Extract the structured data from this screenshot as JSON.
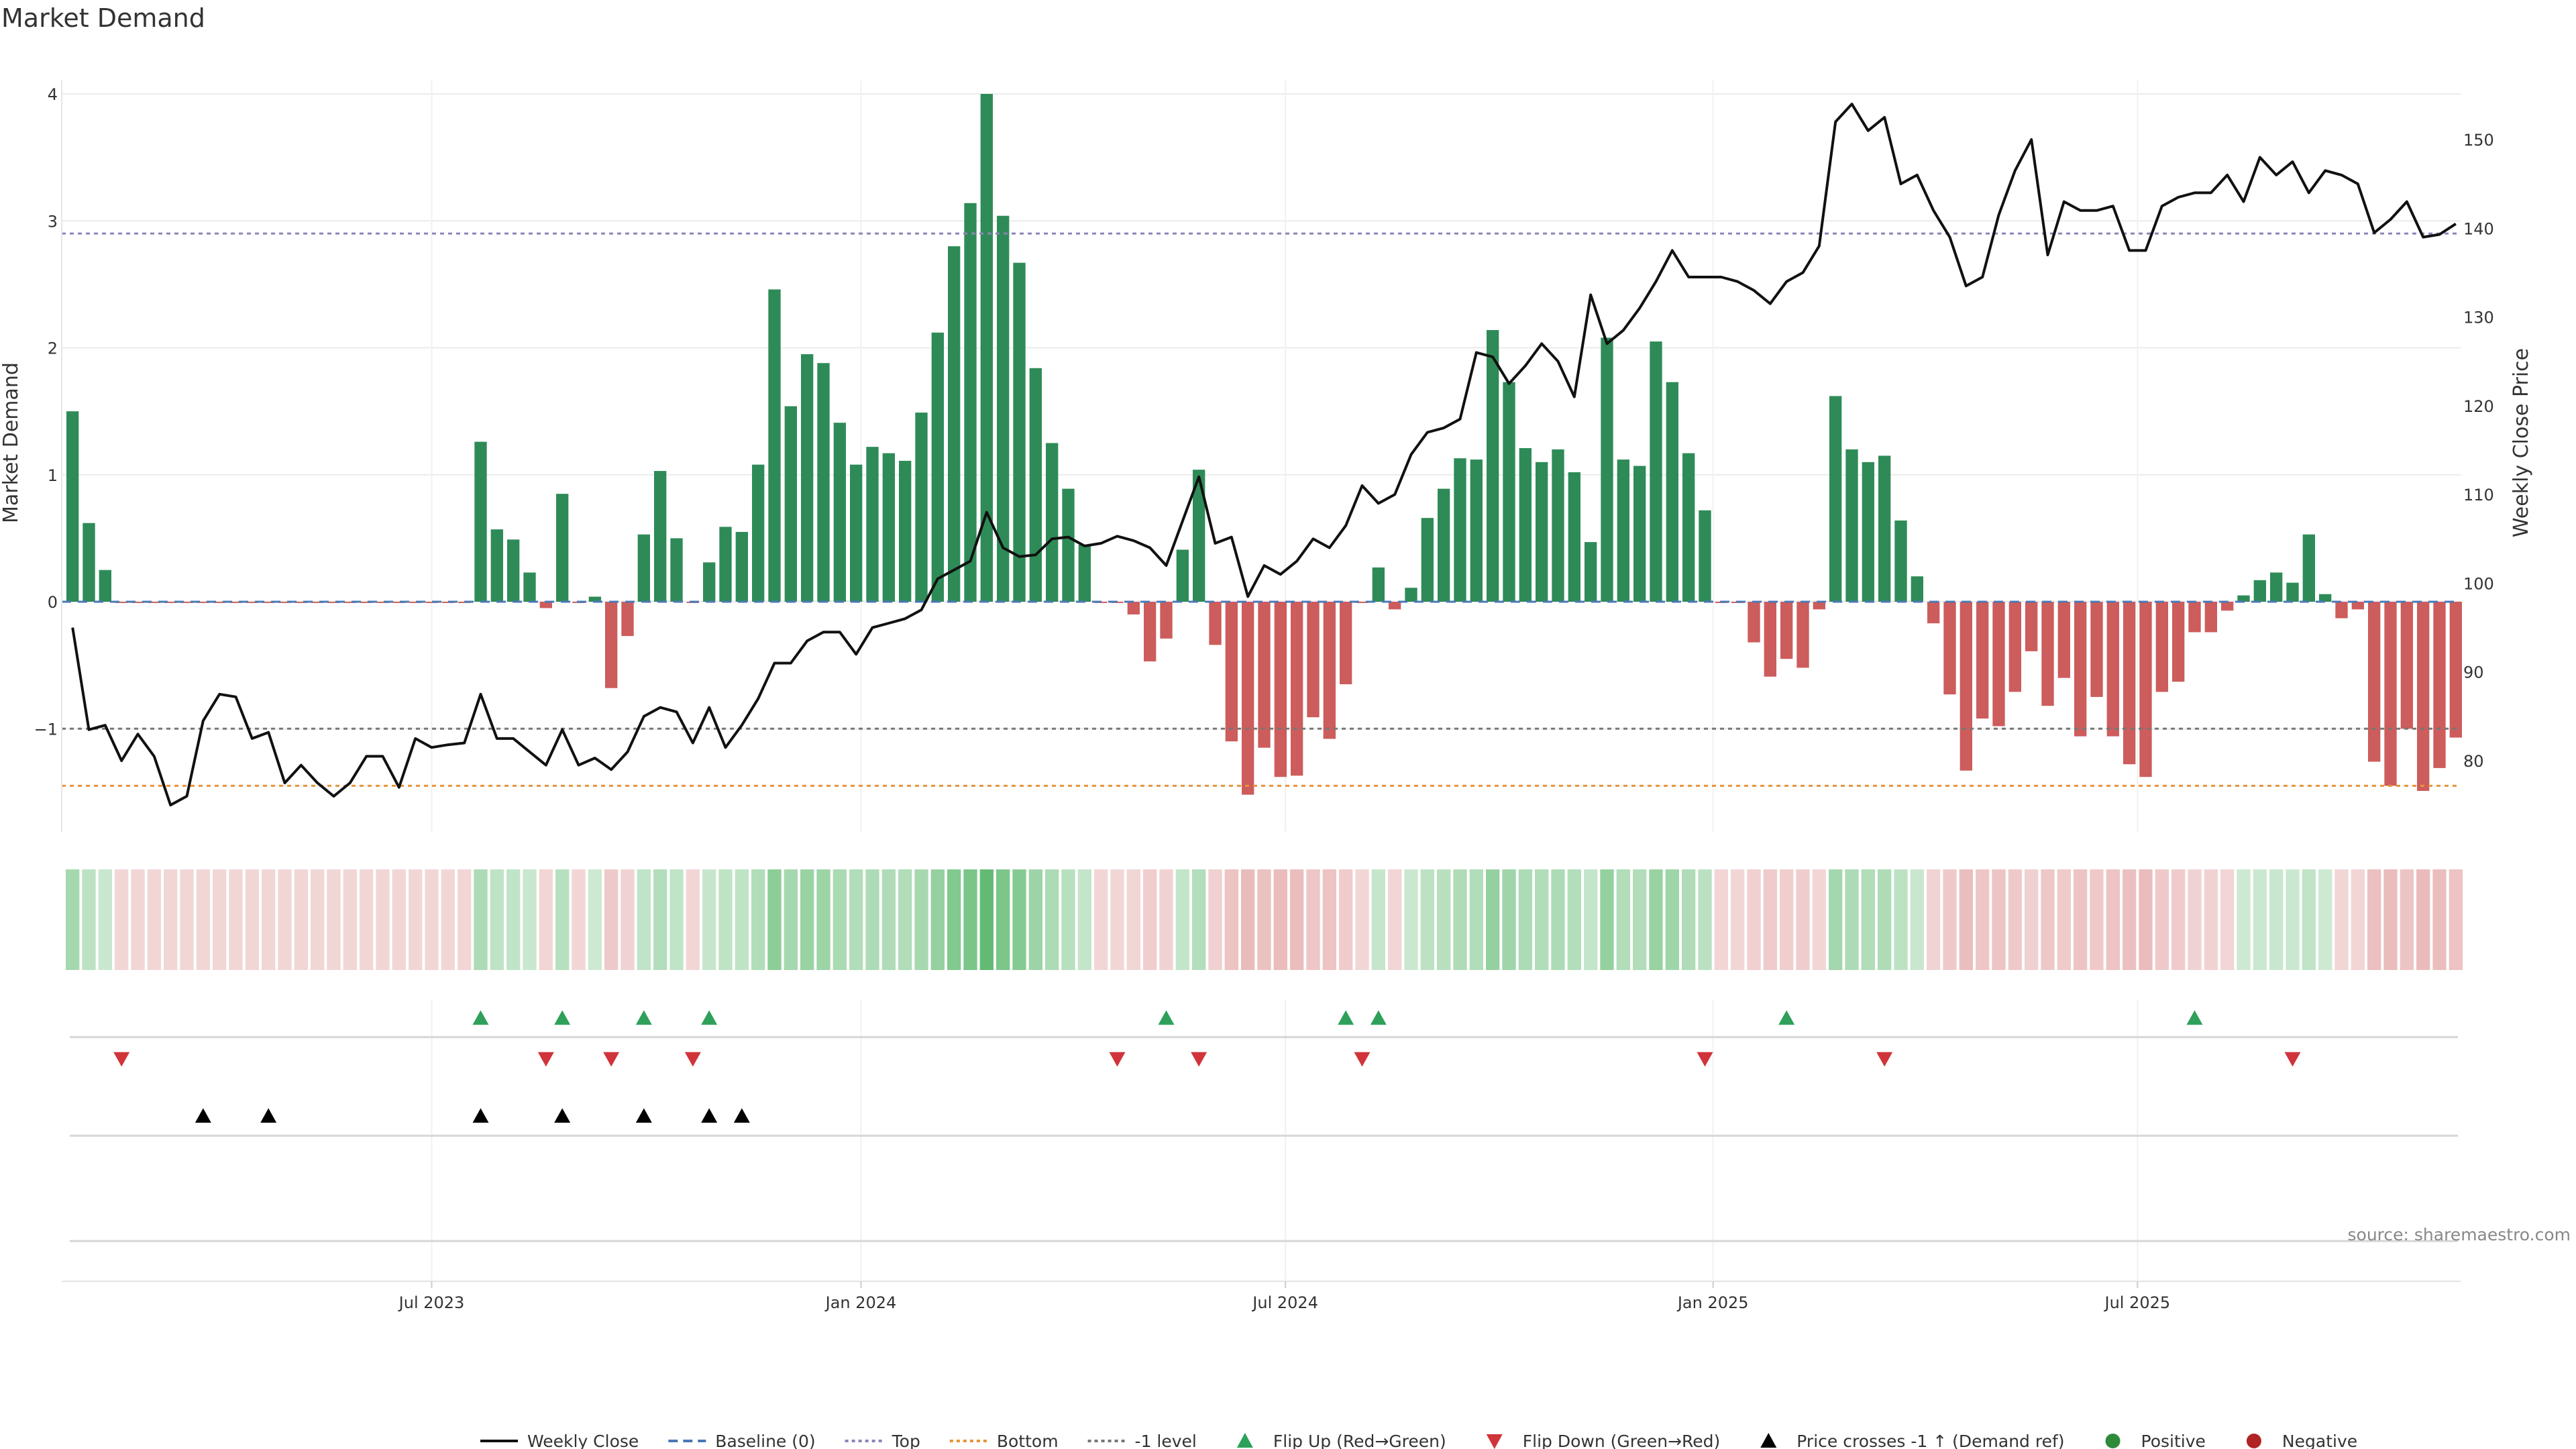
{
  "chart_data": {
    "type": "bar",
    "title": "Market Demand",
    "ylabel": "Market Demand",
    "y2label": "Weekly Close Price",
    "ylim": [
      -1.85,
      4.1
    ],
    "y2lim": [
      73.5,
      157.5
    ],
    "yticks": [
      4,
      3,
      2,
      1,
      0,
      -1
    ],
    "y2ticks": [
      150,
      140,
      130,
      120,
      110,
      100,
      90,
      80
    ],
    "xticks": [
      {
        "label": "Jul 2023",
        "index": 22
      },
      {
        "label": "Jan 2024",
        "index": 48.3
      },
      {
        "label": "Jul 2024",
        "index": 74.3
      },
      {
        "label": "Jan 2025",
        "index": 100.5
      },
      {
        "label": "Jul 2025",
        "index": 126.5
      }
    ],
    "reference_lines": {
      "top": 2.9,
      "bottom": -1.45,
      "minus_one": -1,
      "baseline": 0
    },
    "demand": [
      1.5,
      0.62,
      0.25,
      -0.01,
      -0.01,
      -0.01,
      -0.01,
      -0.01,
      -0.01,
      -0.01,
      -0.01,
      -0.01,
      -0.01,
      -0.01,
      -0.01,
      -0.01,
      -0.01,
      -0.01,
      -0.01,
      -0.01,
      -0.01,
      -0.01,
      -0.01,
      -0.01,
      -0.01,
      1.26,
      0.57,
      0.49,
      0.23,
      -0.05,
      0.85,
      -0.01,
      0.04,
      -0.68,
      -0.27,
      0.53,
      1.03,
      0.5,
      -0.01,
      0.31,
      0.59,
      0.55,
      1.08,
      2.46,
      1.54,
      1.95,
      1.88,
      1.41,
      1.08,
      1.22,
      1.17,
      1.11,
      1.49,
      2.12,
      2.8,
      3.14,
      4.0,
      3.04,
      2.67,
      1.84,
      1.25,
      0.89,
      0.45,
      -0.01,
      -0.01,
      -0.1,
      -0.47,
      -0.29,
      0.41,
      1.04,
      -0.34,
      -1.1,
      -1.52,
      -1.15,
      -1.38,
      -1.37,
      -0.91,
      -1.08,
      -0.65,
      -0.01,
      0.27,
      -0.06,
      0.11,
      0.66,
      0.89,
      1.13,
      1.12,
      2.14,
      1.73,
      1.21,
      1.1,
      1.2,
      1.02,
      0.47,
      2.08,
      1.12,
      1.07,
      2.05,
      1.73,
      1.17,
      0.72,
      -0.01,
      -0.01,
      -0.32,
      -0.59,
      -0.45,
      -0.52,
      -0.06,
      1.62,
      1.2,
      1.1,
      1.15,
      0.64,
      0.2,
      -0.17,
      -0.73,
      -1.33,
      -0.92,
      -0.98,
      -0.71,
      -0.39,
      -0.82,
      -0.6,
      -1.06,
      -0.75,
      -1.06,
      -1.28,
      -1.38,
      -0.71,
      -0.63,
      -0.24,
      -0.24,
      -0.07,
      0.05,
      0.17,
      0.23,
      0.15,
      0.53,
      0.06,
      -0.13,
      -0.06,
      -1.26,
      -1.45,
      -1.0,
      -1.49,
      -1.31,
      -1.07
    ],
    "weekly_close": [
      95.0,
      83.5,
      84.0,
      80.0,
      83.0,
      80.5,
      75.0,
      76.0,
      84.5,
      87.5,
      87.2,
      82.5,
      83.2,
      77.5,
      79.5,
      77.5,
      76.0,
      77.5,
      80.5,
      80.5,
      77.0,
      82.5,
      81.5,
      81.8,
      82.0,
      87.5,
      82.5,
      82.5,
      81.0,
      79.5,
      83.5,
      79.5,
      80.3,
      79.0,
      81.0,
      85.0,
      86.0,
      85.5,
      82.0,
      86.0,
      81.5,
      84.0,
      87.0,
      91.0,
      91.0,
      93.5,
      94.5,
      94.5,
      92.0,
      95.0,
      95.5,
      96.0,
      97.0,
      100.5,
      101.5,
      102.5,
      108.0,
      104.0,
      103.0,
      103.2,
      105.0,
      105.2,
      104.2,
      104.5,
      105.3,
      104.8,
      104.0,
      102.0,
      107.0,
      112.0,
      104.5,
      105.2,
      98.5,
      102.0,
      101.0,
      102.5,
      105.0,
      104.0,
      106.5,
      111.0,
      109.0,
      110.0,
      114.5,
      117.0,
      117.5,
      118.5,
      126.0,
      125.5,
      122.5,
      124.5,
      127.0,
      125.0,
      121.0,
      132.5,
      127.0,
      128.5,
      131.0,
      134.0,
      137.5,
      134.5,
      134.5,
      134.5,
      134.0,
      133.0,
      131.5,
      134.0,
      135.0,
      138.0,
      152.0,
      154.0,
      151.0,
      152.5,
      145.0,
      146.0,
      142.0,
      139.0,
      133.5,
      134.5,
      141.5,
      146.5,
      150.0,
      137.0,
      143.0,
      142.0,
      142.0,
      142.5,
      137.5,
      137.5,
      142.5,
      143.5,
      144.0,
      144.0,
      146.0,
      143.0,
      148.0,
      146.0,
      147.5,
      144.0,
      146.5,
      146.0,
      145.0,
      139.5,
      141.0,
      143.0,
      139.0,
      139.3,
      140.5
    ]
  },
  "events": {
    "flip_up": [
      25,
      30,
      35,
      39,
      67,
      78,
      80,
      105,
      130
    ],
    "flip_down": [
      3,
      29,
      33,
      38,
      64,
      69,
      79,
      100,
      111,
      136
    ],
    "price_cross": [
      8,
      12,
      25,
      30,
      35,
      39,
      41
    ]
  },
  "legend": {
    "items": [
      {
        "label": "Weekly Close",
        "kind": "line",
        "color": "#111111"
      },
      {
        "label": "Baseline (0)",
        "kind": "dash",
        "color": "#4a78b6"
      },
      {
        "label": "Top",
        "kind": "dot",
        "color": "#8c84b8"
      },
      {
        "label": "Bottom",
        "kind": "dot",
        "color": "#e6943a"
      },
      {
        "label": "-1 level",
        "kind": "dot",
        "color": "#777777"
      },
      {
        "label": "Flip Up (Red→Green)",
        "kind": "tri-up",
        "color": "#2ea05a"
      },
      {
        "label": "Flip Down (Green→Red)",
        "kind": "tri-down",
        "color": "#d0343a"
      },
      {
        "label": "Price crosses -1 ↑ (Demand ref)",
        "kind": "tri-up",
        "color": "#000000"
      },
      {
        "label": "Positive",
        "kind": "circle",
        "color": "#2e8b3a"
      },
      {
        "label": "Negative",
        "kind": "circle",
        "color": "#b02424"
      }
    ]
  },
  "source": "source: sharemaestro.com",
  "colors": {
    "positive": "#2e8b57",
    "negative": "#cd5c5c",
    "price": "#111111",
    "grid": "#ebebeb"
  }
}
